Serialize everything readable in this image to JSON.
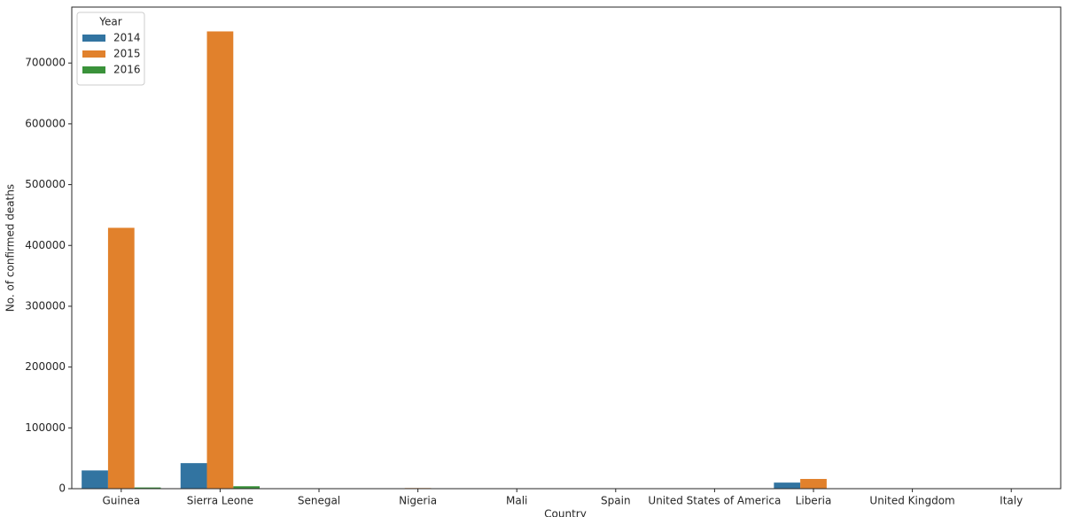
{
  "chart_data": {
    "type": "bar",
    "xlabel": "Country",
    "ylabel": "No. of confirmed deaths",
    "categories": [
      "Guinea",
      "Sierra Leone",
      "Senegal",
      "Nigeria",
      "Mali",
      "Spain",
      "United States of America",
      "Liberia",
      "United Kingdom",
      "Italy"
    ],
    "series": [
      {
        "name": "2014",
        "color": "#3274a1",
        "values": [
          30000,
          42000,
          0,
          0,
          0,
          0,
          0,
          10000,
          0,
          0
        ]
      },
      {
        "name": "2015",
        "color": "#e1812c",
        "values": [
          429000,
          752000,
          0,
          1000,
          0,
          0,
          0,
          16000,
          0,
          0
        ]
      },
      {
        "name": "2016",
        "color": "#3a923a",
        "values": [
          2000,
          4000,
          0,
          0,
          0,
          0,
          0,
          0,
          0,
          0
        ]
      }
    ],
    "legend_title": "Year",
    "legend": "upper left",
    "ylim": [
      0,
      792000
    ],
    "yticks": [
      0,
      100000,
      200000,
      300000,
      400000,
      500000,
      600000,
      700000
    ],
    "grid": false
  }
}
